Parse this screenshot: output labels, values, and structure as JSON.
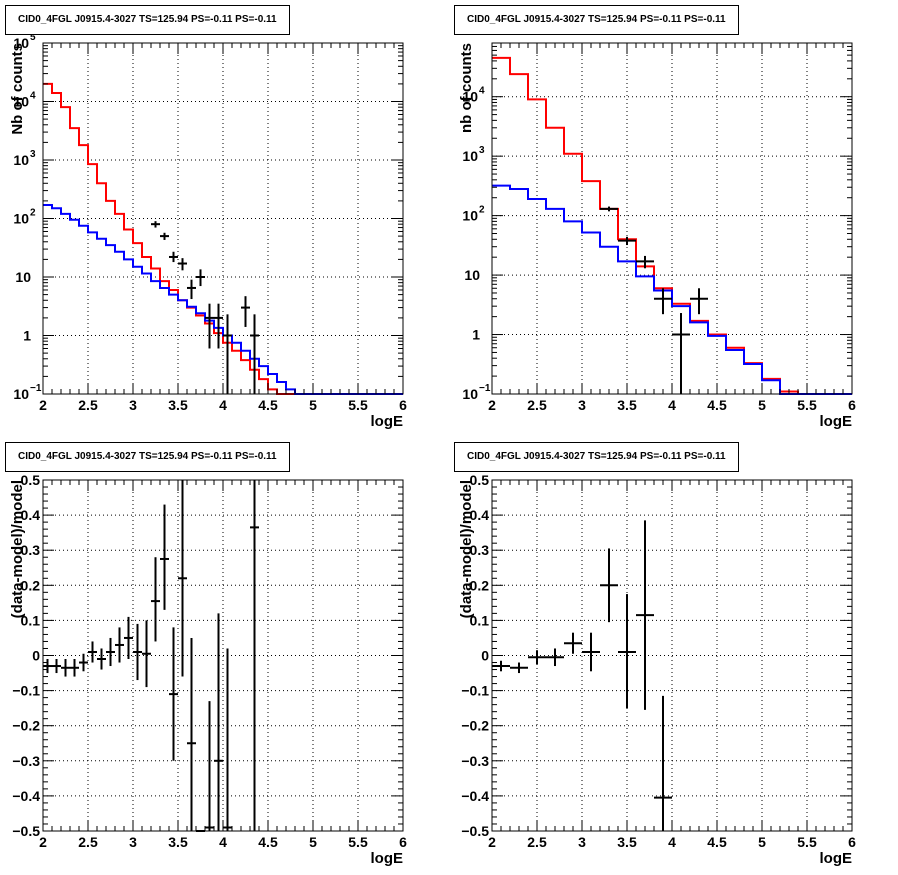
{
  "chart_data": [
    {
      "type": "histogram",
      "title": "CID0_4FGL J0915.4-3027 TS=125.94 PS=-0.11 PS=-0.11",
      "xlabel": "logE",
      "ylabel": "Nb of counts",
      "yscale": "log",
      "xlim": [
        2,
        6
      ],
      "ylim": [
        0.1,
        100000
      ],
      "x_ticks": [
        "2",
        "2.5",
        "3",
        "3.5",
        "4",
        "4.5",
        "5",
        "5.5",
        "6"
      ],
      "y_ticks": [
        {
          "v": 0.1,
          "base": "10",
          "exp": "−1"
        },
        {
          "v": 1,
          "base": "1",
          "exp": ""
        },
        {
          "v": 10,
          "base": "10",
          "exp": ""
        },
        {
          "v": 100,
          "base": "10",
          "exp": "2"
        },
        {
          "v": 1000,
          "base": "10",
          "exp": "3"
        },
        {
          "v": 10000,
          "base": "10",
          "exp": "4"
        },
        {
          "v": 100000,
          "base": "10",
          "exp": "5"
        }
      ],
      "grid": true,
      "bins": {
        "start": 2.0,
        "width": 0.1
      },
      "series": [
        {
          "color": "#ff0000",
          "style": "step",
          "values": [
            20000,
            14000,
            8000,
            3500,
            1800,
            850,
            400,
            200,
            120,
            65,
            38,
            22,
            14,
            8.5,
            6,
            4,
            3,
            2.2,
            1.6,
            1.1,
            0.75,
            0.55,
            0.38,
            0.26,
            0.18,
            0.12,
            0.1,
            0.1,
            0.1,
            0.1,
            0.1,
            0.1,
            0.1,
            0.1,
            0.1,
            0.1,
            0.1,
            0.1,
            0.1,
            0.1
          ]
        },
        {
          "color": "#0000ff",
          "style": "step",
          "values": [
            170,
            150,
            120,
            95,
            75,
            58,
            45,
            35,
            27,
            20,
            15,
            11.5,
            8.5,
            6.5,
            5,
            4,
            3.1,
            2.4,
            1.8,
            1.35,
            1,
            0.75,
            0.55,
            0.4,
            0.3,
            0.22,
            0.16,
            0.12,
            0.1,
            0.1,
            0.1,
            0.1,
            0.1,
            0.1,
            0.1,
            0.1,
            0.1,
            0.1,
            0.1,
            0.1
          ]
        }
      ],
      "points": [
        {
          "x": 3.25,
          "y": 80,
          "lo": 70,
          "hi": 90
        },
        {
          "x": 3.35,
          "y": 50,
          "lo": 43,
          "hi": 57
        },
        {
          "x": 3.45,
          "y": 22,
          "lo": 18,
          "hi": 27
        },
        {
          "x": 3.55,
          "y": 17,
          "lo": 13,
          "hi": 21
        },
        {
          "x": 3.65,
          "y": 6.5,
          "lo": 4.2,
          "hi": 9
        },
        {
          "x": 3.75,
          "y": 10,
          "lo": 7,
          "hi": 13.5
        },
        {
          "x": 3.85,
          "y": 2,
          "lo": 0.6,
          "hi": 3.5
        },
        {
          "x": 3.95,
          "y": 2,
          "lo": 0.6,
          "hi": 3.5
        },
        {
          "x": 4.05,
          "y": 1,
          "lo": 0.1,
          "hi": 2.3
        },
        {
          "x": 4.25,
          "y": 3,
          "lo": 1.4,
          "hi": 4.7
        },
        {
          "x": 4.35,
          "y": 1,
          "lo": 0.1,
          "hi": 2.3
        }
      ]
    },
    {
      "type": "histogram",
      "title": "CID0_4FGL J0915.4-3027 TS=125.94 PS=-0.11 PS=-0.11",
      "xlabel": "logE",
      "ylabel": "nb of counts",
      "yscale": "log",
      "xlim": [
        2,
        6
      ],
      "ylim": [
        0.1,
        80000
      ],
      "x_ticks": [
        "2",
        "2.5",
        "3",
        "3.5",
        "4",
        "4.5",
        "5",
        "5.5",
        "6"
      ],
      "y_ticks": [
        {
          "v": 0.1,
          "base": "10",
          "exp": "−1"
        },
        {
          "v": 1,
          "base": "1",
          "exp": ""
        },
        {
          "v": 10,
          "base": "10",
          "exp": ""
        },
        {
          "v": 100,
          "base": "10",
          "exp": "2"
        },
        {
          "v": 1000,
          "base": "10",
          "exp": "3"
        },
        {
          "v": 10000,
          "base": "10",
          "exp": "4"
        }
      ],
      "grid": true,
      "bins": {
        "start": 2.0,
        "width": 0.2
      },
      "series": [
        {
          "color": "#ff0000",
          "style": "step",
          "values": [
            45000,
            24000,
            9000,
            3000,
            1100,
            380,
            130,
            40,
            14,
            6,
            3.3,
            1.7,
            1.0,
            0.6,
            0.33,
            0.18,
            0.11,
            0.1,
            0.1,
            0.1
          ]
        },
        {
          "color": "#0000ff",
          "style": "step",
          "values": [
            320,
            280,
            190,
            130,
            80,
            52,
            30,
            17,
            9.5,
            5.5,
            3,
            1.6,
            0.95,
            0.55,
            0.32,
            0.17,
            0.1,
            0.1,
            0.1,
            0.1
          ]
        }
      ],
      "points": [
        {
          "x": 3.3,
          "y": 130,
          "lo": 118,
          "hi": 142
        },
        {
          "x": 3.5,
          "y": 38,
          "lo": 32,
          "hi": 44
        },
        {
          "x": 3.7,
          "y": 17,
          "lo": 13,
          "hi": 21
        },
        {
          "x": 3.9,
          "y": 4,
          "lo": 2.2,
          "hi": 6
        },
        {
          "x": 4.1,
          "y": 1,
          "lo": 0.1,
          "hi": 2.3
        },
        {
          "x": 4.3,
          "y": 4,
          "lo": 2.2,
          "hi": 6
        }
      ]
    },
    {
      "type": "scatter",
      "title": "CID0_4FGL J0915.4-3027 TS=125.94 PS=-0.11 PS=-0.11",
      "xlabel": "logE",
      "ylabel": "(data-model)/model",
      "yscale": "linear",
      "xlim": [
        2,
        6
      ],
      "ylim": [
        -0.5,
        0.5
      ],
      "x_ticks": [
        "2",
        "2.5",
        "3",
        "3.5",
        "4",
        "4.5",
        "5",
        "5.5",
        "6"
      ],
      "y_ticks": [
        {
          "v": -0.5,
          "label": "−0.5"
        },
        {
          "v": -0.4,
          "label": "−0.4"
        },
        {
          "v": -0.3,
          "label": "−0.3"
        },
        {
          "v": -0.2,
          "label": "−0.2"
        },
        {
          "v": -0.1,
          "label": "−0.1"
        },
        {
          "v": 0,
          "label": "0"
        },
        {
          "v": 0.1,
          "label": "0.1"
        },
        {
          "v": 0.2,
          "label": "0.2"
        },
        {
          "v": 0.3,
          "label": "0.3"
        },
        {
          "v": 0.4,
          "label": "0.4"
        },
        {
          "v": 0.5,
          "label": "0.5"
        }
      ],
      "grid": true,
      "xerr": 0.05,
      "points": [
        {
          "x": 2.05,
          "y": -0.03,
          "lo": -0.05,
          "hi": -0.01
        },
        {
          "x": 2.15,
          "y": -0.03,
          "lo": -0.05,
          "hi": -0.01
        },
        {
          "x": 2.25,
          "y": -0.035,
          "lo": -0.06,
          "hi": -0.01
        },
        {
          "x": 2.35,
          "y": -0.035,
          "lo": -0.06,
          "hi": -0.01
        },
        {
          "x": 2.45,
          "y": -0.02,
          "lo": -0.045,
          "hi": 0.005
        },
        {
          "x": 2.55,
          "y": 0.01,
          "lo": -0.02,
          "hi": 0.04
        },
        {
          "x": 2.65,
          "y": -0.01,
          "lo": -0.04,
          "hi": 0.02
        },
        {
          "x": 2.75,
          "y": 0.01,
          "lo": -0.03,
          "hi": 0.05
        },
        {
          "x": 2.85,
          "y": 0.03,
          "lo": -0.02,
          "hi": 0.08
        },
        {
          "x": 2.95,
          "y": 0.05,
          "lo": -0.01,
          "hi": 0.11
        },
        {
          "x": 3.05,
          "y": 0.01,
          "lo": -0.07,
          "hi": 0.09
        },
        {
          "x": 3.15,
          "y": 0.005,
          "lo": -0.09,
          "hi": 0.1
        },
        {
          "x": 3.25,
          "y": 0.155,
          "lo": 0.04,
          "hi": 0.28
        },
        {
          "x": 3.35,
          "y": 0.275,
          "lo": 0.13,
          "hi": 0.43
        },
        {
          "x": 3.45,
          "y": -0.11,
          "lo": -0.3,
          "hi": 0.08
        },
        {
          "x": 3.55,
          "y": 0.22,
          "lo": -0.06,
          "hi": 0.5
        },
        {
          "x": 3.65,
          "y": -0.25,
          "lo": -0.5,
          "hi": 0.05
        },
        {
          "x": 3.75,
          "y": -0.5,
          "lo": -0.5,
          "hi": -0.5
        },
        {
          "x": 3.85,
          "y": -0.49,
          "lo": -0.5,
          "hi": -0.13
        },
        {
          "x": 3.95,
          "y": -0.3,
          "lo": -0.5,
          "hi": 0.12
        },
        {
          "x": 4.05,
          "y": -0.49,
          "lo": -0.5,
          "hi": 0.02
        },
        {
          "x": 4.35,
          "y": 0.365,
          "lo": -0.5,
          "hi": 0.5
        }
      ]
    },
    {
      "type": "scatter",
      "title": "CID0_4FGL J0915.4-3027 TS=125.94 PS=-0.11 PS=-0.11",
      "xlabel": "logE",
      "ylabel": "(data-model)/model",
      "yscale": "linear",
      "xlim": [
        2,
        6
      ],
      "ylim": [
        -0.5,
        0.5
      ],
      "x_ticks": [
        "2",
        "2.5",
        "3",
        "3.5",
        "4",
        "4.5",
        "5",
        "5.5",
        "6"
      ],
      "y_ticks": [
        {
          "v": -0.5,
          "label": "−0.5"
        },
        {
          "v": -0.4,
          "label": "−0.4"
        },
        {
          "v": -0.3,
          "label": "−0.3"
        },
        {
          "v": -0.2,
          "label": "−0.2"
        },
        {
          "v": -0.1,
          "label": "−0.1"
        },
        {
          "v": 0,
          "label": "0"
        },
        {
          "v": 0.1,
          "label": "0.1"
        },
        {
          "v": 0.2,
          "label": "0.2"
        },
        {
          "v": 0.3,
          "label": "0.3"
        },
        {
          "v": 0.4,
          "label": "0.4"
        },
        {
          "v": 0.5,
          "label": "0.5"
        }
      ],
      "grid": true,
      "xerr": 0.1,
      "points": [
        {
          "x": 2.1,
          "y": -0.03,
          "lo": -0.045,
          "hi": -0.015
        },
        {
          "x": 2.3,
          "y": -0.035,
          "lo": -0.05,
          "hi": -0.02
        },
        {
          "x": 2.5,
          "y": -0.005,
          "lo": -0.025,
          "hi": 0.015
        },
        {
          "x": 2.7,
          "y": -0.005,
          "lo": -0.03,
          "hi": 0.02
        },
        {
          "x": 2.9,
          "y": 0.035,
          "lo": 0.005,
          "hi": 0.065
        },
        {
          "x": 3.1,
          "y": 0.01,
          "lo": -0.045,
          "hi": 0.065
        },
        {
          "x": 3.3,
          "y": 0.2,
          "lo": 0.095,
          "hi": 0.305
        },
        {
          "x": 3.5,
          "y": 0.01,
          "lo": -0.15,
          "hi": 0.175
        },
        {
          "x": 3.7,
          "y": 0.115,
          "lo": -0.155,
          "hi": 0.385
        },
        {
          "x": 3.9,
          "y": -0.405,
          "lo": -0.5,
          "hi": -0.115
        }
      ]
    }
  ]
}
